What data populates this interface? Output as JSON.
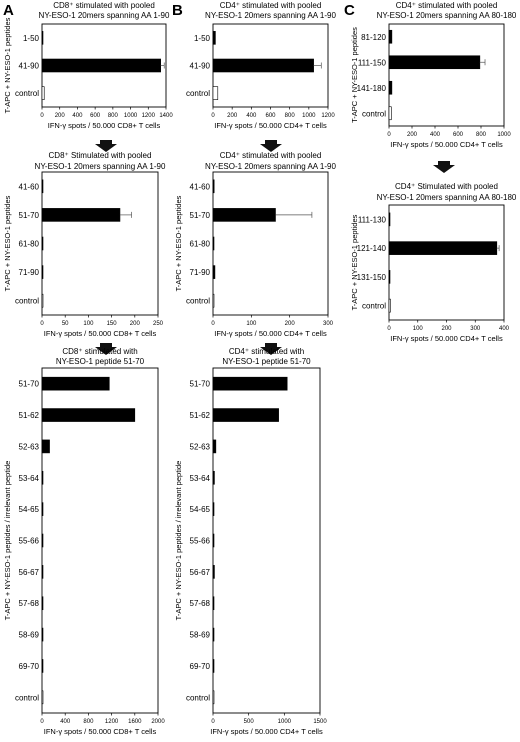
{
  "panel_labels": [
    "A",
    "B",
    "C"
  ],
  "chart_data": [
    {
      "id": "A1",
      "type": "bar",
      "title": [
        "CD8⁺ stimulated with pooled",
        "NY-ESO-1 20mers spanning AA 1-90"
      ],
      "categories": [
        "1-50",
        "41-90",
        "control"
      ],
      "values": [
        10,
        1340,
        25
      ],
      "errors": [
        0,
        40,
        0
      ],
      "fills": [
        "#000",
        "#000",
        "#fff"
      ],
      "xlim": [
        0,
        1400
      ],
      "xticks": [
        0,
        200,
        400,
        600,
        800,
        1000,
        1200,
        1400
      ],
      "xlabel": "IFN-γ spots / 50.000 CD8+ T cells",
      "ylabel": "T-APC + NY-ESO-1 peptides"
    },
    {
      "id": "B1",
      "type": "bar",
      "title": [
        "CD4⁺ stimulated with pooled",
        "NY-ESO-1 20mers spanning AA 1-90"
      ],
      "categories": [
        "1-50",
        "41-90",
        "control"
      ],
      "values": [
        25,
        1050,
        50
      ],
      "errors": [
        0,
        80,
        0
      ],
      "fills": [
        "#000",
        "#000",
        "#fff"
      ],
      "xlim": [
        0,
        1200
      ],
      "xticks": [
        0,
        200,
        400,
        600,
        800,
        1000,
        1200
      ],
      "xlabel": "IFN-γ spots / 50.000 CD4+ T cells",
      "ylabel": ""
    },
    {
      "id": "C1",
      "type": "bar",
      "title": [
        "CD4⁺ stimulated with pooled",
        "NY-ESO-1 20mers spanning AA 80-180"
      ],
      "categories": [
        "81-120",
        "111-150",
        "141-180",
        "control"
      ],
      "values": [
        25,
        790,
        25,
        20
      ],
      "errors": [
        0,
        45,
        0,
        0
      ],
      "fills": [
        "#000",
        "#000",
        "#000",
        "#fff"
      ],
      "xlim": [
        0,
        1000
      ],
      "xticks": [
        0,
        200,
        400,
        600,
        800,
        1000
      ],
      "xlabel": "IFN-γ spots / 50.000 CD4+ T cells",
      "ylabel": "T-APC + NY-ESO-1 peptides"
    },
    {
      "id": "A2",
      "type": "bar",
      "title": [
        "CD8⁺ Stimulated with pooled",
        "NY-ESO-1 20mers spanning AA 1-90"
      ],
      "categories": [
        "41-60",
        "51-70",
        "61-80",
        "71-90",
        "control"
      ],
      "values": [
        2,
        168,
        0,
        2,
        0
      ],
      "errors": [
        0,
        25,
        0,
        0,
        0
      ],
      "fills": [
        "#000",
        "#000",
        "#000",
        "#000",
        "#fff"
      ],
      "xlim": [
        0,
        250
      ],
      "xticks": [
        0,
        50,
        100,
        150,
        200,
        250
      ],
      "xlabel": "IFN-γ spots / 50.000 CD8+ T cells",
      "ylabel": "T-APC + NY-ESO-1 peptides"
    },
    {
      "id": "B2",
      "type": "bar",
      "title": [
        "CD4⁺ stimulated with pooled",
        "NY-ESO-1 20mers spanning AA 1-90"
      ],
      "categories": [
        "41-60",
        "51-70",
        "61-80",
        "71-90",
        "control"
      ],
      "values": [
        3,
        163,
        2,
        5,
        0
      ],
      "errors": [
        0,
        95,
        0,
        0,
        0
      ],
      "fills": [
        "#000",
        "#000",
        "#000",
        "#000",
        "#fff"
      ],
      "xlim": [
        0,
        300
      ],
      "xticks": [
        0,
        100,
        200,
        300
      ],
      "xlabel": "IFN-γ spots / 50.000 CD4+ T cells",
      "ylabel": "T-APC + NY-ESO-1 peptides"
    },
    {
      "id": "C2",
      "type": "bar",
      "title": [
        "CD4⁺ Stimulated with pooled",
        "NY-ESO-1 20mers spanning AA 80-180"
      ],
      "categories": [
        "111-130",
        "121-140",
        "131-150",
        "control"
      ],
      "values": [
        0,
        375,
        0,
        5
      ],
      "errors": [
        0,
        8,
        0,
        0
      ],
      "fills": [
        "#000",
        "#000",
        "#000",
        "#fff"
      ],
      "xlim": [
        0,
        400
      ],
      "xticks": [
        0,
        100,
        200,
        300,
        400
      ],
      "xlabel": "IFN-γ spots / 50.000 CD4+ T cells",
      "ylabel": "T-APC + NY-ESO-1 peptides"
    },
    {
      "id": "A3",
      "type": "bar",
      "title": [
        "CD8⁺ stimulated with",
        "NY-ESO-1 peptide 51-70"
      ],
      "categories": [
        "51-70",
        "51-62",
        "52-63",
        "53-64",
        "54-65",
        "55-66",
        "56-67",
        "57-68",
        "58-69",
        "69-70",
        "control"
      ],
      "values": [
        1160,
        1600,
        130,
        5,
        0,
        15,
        5,
        0,
        0,
        5,
        0
      ],
      "errors": [
        0,
        0,
        0,
        0,
        0,
        0,
        0,
        0,
        0,
        0,
        0
      ],
      "fills": [
        "#000",
        "#000",
        "#000",
        "#000",
        "#000",
        "#000",
        "#000",
        "#000",
        "#000",
        "#000",
        "#fff"
      ],
      "xlim": [
        0,
        2000
      ],
      "xticks": [
        0,
        400,
        800,
        1200,
        1600,
        2000
      ],
      "xlabel": "IFN-γ spots / 50.000 CD8+ T cells",
      "ylabel": "T-APC + NY-ESO-1 peptides / irrelevant peptide"
    },
    {
      "id": "B3",
      "type": "bar",
      "title": [
        "CD4⁺ stimulated with",
        "NY-ESO-1 peptide 51-70"
      ],
      "categories": [
        "51-70",
        "51-62",
        "52-63",
        "53-64",
        "54-65",
        "55-66",
        "56-67",
        "57-68",
        "58-69",
        "69-70",
        "control"
      ],
      "values": [
        1040,
        920,
        40,
        20,
        0,
        0,
        20,
        0,
        0,
        0,
        5
      ],
      "errors": [
        0,
        0,
        0,
        0,
        0,
        0,
        0,
        0,
        0,
        0,
        0
      ],
      "fills": [
        "#000",
        "#000",
        "#000",
        "#000",
        "#000",
        "#000",
        "#000",
        "#000",
        "#000",
        "#000",
        "#fff"
      ],
      "xlim": [
        0,
        1500
      ],
      "xticks": [
        0,
        500,
        1000,
        1500
      ],
      "xlabel": "IFN-γ spots / 50.000 CD4+ T cells",
      "ylabel": "T-APC + NY-ESO-1 peptides / irrelevant peptide"
    }
  ]
}
